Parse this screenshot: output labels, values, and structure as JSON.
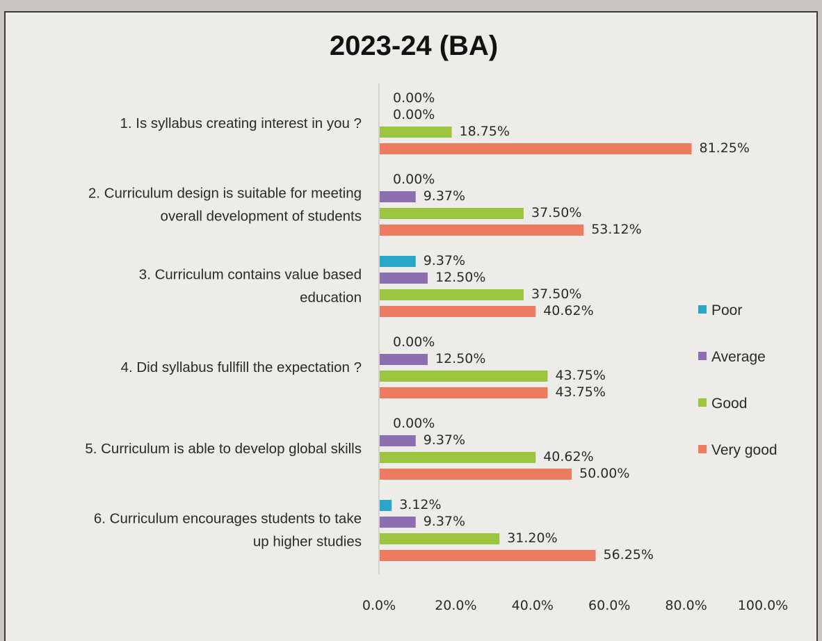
{
  "chart_data": {
    "type": "bar",
    "orientation": "horizontal",
    "title": "2023-24 (BA)",
    "xlim": [
      0,
      100
    ],
    "x_ticks": [
      "0.0%",
      "20.0%",
      "40.0%",
      "60.0%",
      "80.0%",
      "100.0%"
    ],
    "categories": [
      [
        "1. Is syllabus creating interest in you ?"
      ],
      [
        "2. Curriculum design is suitable for meeting",
        "overall development of students"
      ],
      [
        "3. Curriculum contains value based",
        "education"
      ],
      [
        "4. Did syllabus fullfill the expectation ?"
      ],
      [
        "5. Curriculum is able to develop global skills"
      ],
      [
        "6. Curriculum encourages students to take",
        "up higher studies"
      ]
    ],
    "series": [
      {
        "name": "Poor",
        "color": "#2aa6c9",
        "values": [
          0,
          0,
          9.37,
          0,
          0,
          3.12
        ],
        "labels": [
          "0.00%",
          "0.00%",
          "9.37%",
          "0.00%",
          "0.00%",
          "3.12%"
        ]
      },
      {
        "name": "Average",
        "color": "#8c6fb0",
        "values": [
          0,
          9.37,
          12.5,
          12.5,
          9.37,
          9.37
        ],
        "labels": [
          "0.00%",
          "9.37%",
          "12.50%",
          "12.50%",
          "9.37%",
          "9.37%"
        ]
      },
      {
        "name": "Good",
        "color": "#9bc43f",
        "values": [
          18.75,
          37.5,
          37.5,
          43.75,
          40.62,
          31.2
        ],
        "labels": [
          "18.75%",
          "37.50%",
          "37.50%",
          "43.75%",
          "40.62%",
          "31.20%"
        ]
      },
      {
        "name": "Very good",
        "color": "#ec7b5f",
        "values": [
          81.25,
          53.12,
          40.62,
          43.75,
          50.0,
          56.25
        ],
        "labels": [
          "81.25%",
          "53.12%",
          "40.62%",
          "43.75%",
          "50.00%",
          "56.25%"
        ]
      }
    ],
    "legend_position": "right",
    "grid": false
  }
}
